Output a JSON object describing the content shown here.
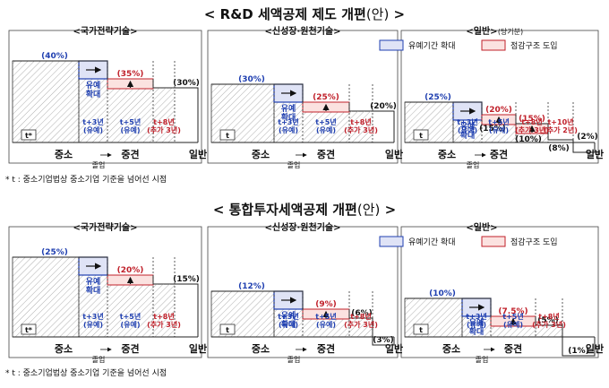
{
  "sections": [
    {
      "title": "R&D 세액공제 제도 개편",
      "title_suffix": "(안)",
      "footnote": "* t : 중소기업법상 중소기업 기준을 넘어선 시점",
      "legend": {
        "extend": "유예기간 확대",
        "restructure": "점감구조 도입"
      },
      "groups": [
        {
          "title": "<국가전략기술>",
          "rates": [
            "(40%)",
            "(35%)",
            "(30%)"
          ],
          "sme_label": "중소",
          "mid_label": "중견",
          "gen_label": "일반",
          "grad_label": "졸업",
          "defer_label": "유예\n확대",
          "t_label": "t*",
          "col_labels": [
            {
              "text": "t+3년\n(유예)",
              "color": "#1f3fb0"
            },
            {
              "text": "t+5년\n(유예)",
              "color": "#1f3fb0"
            },
            {
              "text": "t+8년\n(추가 3년)",
              "color": "#c0202a"
            }
          ]
        },
        {
          "title": "<신성장·원천기술>",
          "rates": [
            "(30%)",
            "(25%)",
            "(20%)"
          ],
          "sme_label": "중소",
          "mid_label": "중견",
          "gen_label": "일반",
          "grad_label": "졸업",
          "defer_label": "유예\n확대",
          "t_label": "t",
          "col_labels": [
            {
              "text": "t+3년\n(유예)",
              "color": "#1f3fb0"
            },
            {
              "text": "t+5년\n(유예)",
              "color": "#1f3fb0"
            },
            {
              "text": "t+8년\n(추가 3년)",
              "color": "#c0202a"
            }
          ]
        },
        {
          "title": "<일반>",
          "title_note": "(당기분)",
          "rates": [
            "(25%)",
            "(20%)",
            "(15%)",
            "(15%)",
            "(10%)",
            "(8%)",
            "(2%)"
          ],
          "sme_label": "중소",
          "mid_label": "중견",
          "gen_label": "일반",
          "grad_label": "졸업",
          "defer_label": "유예\n확대",
          "t_label": "t",
          "col_labels": [
            {
              "text": "t+3년\n(유예)",
              "color": "#1f3fb0"
            },
            {
              "text": "t+5년\n(유예)",
              "color": "#1f3fb0"
            },
            {
              "text": "t+8년\n(추가 3년)",
              "color": "#c0202a"
            },
            {
              "text": "t+10년\n(추가 2년)",
              "color": "#c0202a"
            }
          ]
        }
      ]
    },
    {
      "title": "통합투자세액공제 개편",
      "title_suffix": "(안)",
      "footnote": "* t : 중소기업법상 중소기업 기준을 넘어선 시점",
      "legend": {
        "extend": "유예기간 확대",
        "restructure": "점감구조 도입"
      },
      "groups": [
        {
          "title": "<국가전략기술>",
          "rates": [
            "(25%)",
            "(20%)",
            "(15%)"
          ],
          "sme_label": "중소",
          "mid_label": "중견",
          "gen_label": "일반",
          "grad_label": "졸업",
          "defer_label": "유예\n확대",
          "t_label": "t*",
          "col_labels": [
            {
              "text": "t+3년\n(유예)",
              "color": "#1f3fb0"
            },
            {
              "text": "t+5년\n(유예)",
              "color": "#1f3fb0"
            },
            {
              "text": "t+8년\n(추가 3년)",
              "color": "#c0202a"
            }
          ]
        },
        {
          "title": "<신성장·원천기술>",
          "rates": [
            "(12%)",
            "(9%)",
            "(6%)",
            "(3%)"
          ],
          "sme_label": "중소",
          "mid_label": "중견",
          "gen_label": "일반",
          "grad_label": "졸업",
          "defer_label": "유예\n확대",
          "t_label": "t",
          "col_labels": [
            {
              "text": "t+3년\n(유예)",
              "color": "#1f3fb0"
            },
            {
              "text": "t+5년\n(유예)",
              "color": "#1f3fb0"
            },
            {
              "text": "t+8년\n(추가 3년)",
              "color": "#c0202a"
            }
          ]
        },
        {
          "title": "<일반>",
          "rates": [
            "(10%)",
            "(7.5%)",
            "(5%)",
            "(1%)"
          ],
          "sme_label": "중소",
          "mid_label": "중견",
          "gen_label": "일반",
          "grad_label": "졸업",
          "defer_label": "유예\n확대",
          "t_label": "t",
          "col_labels": [
            {
              "text": "t+3년\n(유예)",
              "color": "#1f3fb0"
            },
            {
              "text": "t+5년\n(유예)",
              "color": "#1f3fb0"
            },
            {
              "text": "t+8년\n(추가 3년)",
              "color": "#c0202a"
            }
          ]
        }
      ]
    }
  ],
  "colors": {
    "blue": "#1f3fb0",
    "red": "#c0202a",
    "defer_fill": "#dfe3f6",
    "restr_fill": "#fbe2e0",
    "hatch": "#9a9a9a"
  }
}
